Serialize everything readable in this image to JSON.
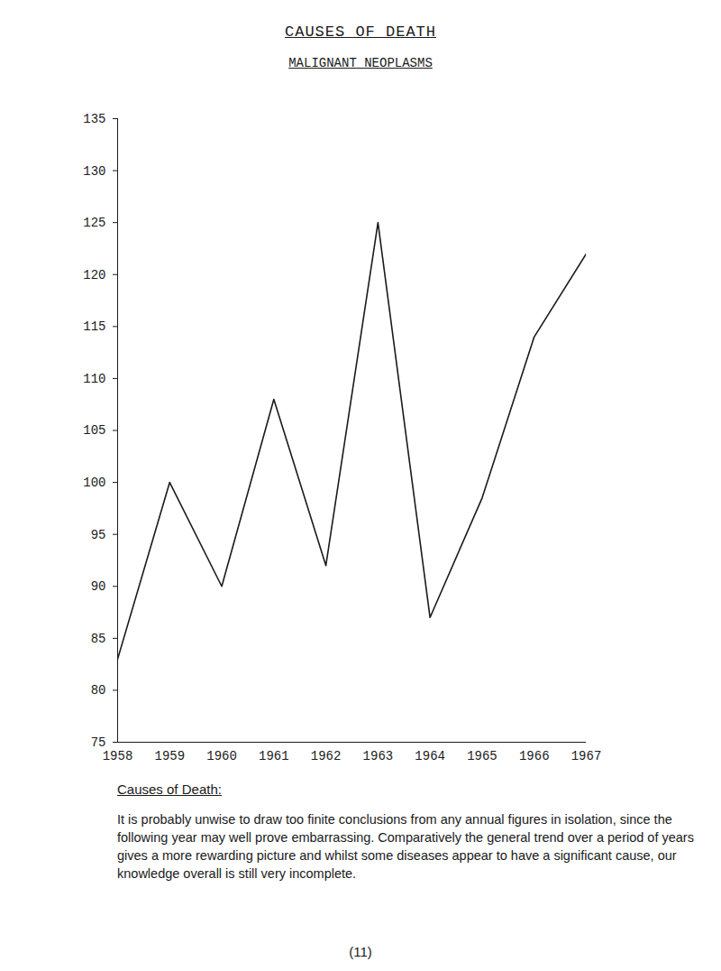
{
  "chart_data": {
    "type": "line",
    "title": "CAUSES OF DEATH",
    "subtitle": "MALIGNANT NEOPLASMS",
    "x": [
      1958,
      1959,
      1960,
      1961,
      1962,
      1963,
      1964,
      1965,
      1966,
      1967
    ],
    "values": [
      83,
      100,
      90,
      108,
      92,
      125,
      87,
      98.5,
      114,
      122
    ],
    "color": "#1a1a1a",
    "xlim": [
      1958,
      1967
    ],
    "xticks": [
      1958,
      1959,
      1960,
      1961,
      1962,
      1963,
      1964,
      1965,
      1966,
      1967
    ],
    "ylim": [
      75,
      135
    ],
    "yticks": [
      75,
      80,
      85,
      90,
      95,
      100,
      105,
      110,
      115,
      120,
      125,
      130,
      135
    ],
    "grid": false
  },
  "document": {
    "heading": "Causes of Death:",
    "paragraph": "It is probably unwise to draw too finite conclusions from any annual figures in isolation, since the following year may well prove embarrassing. Comparatively the general trend over a period of years gives a more rewarding picture and whilst some diseases appear to have a significant cause, our knowledge overall is still very incomplete.",
    "page_number": "(11)"
  }
}
